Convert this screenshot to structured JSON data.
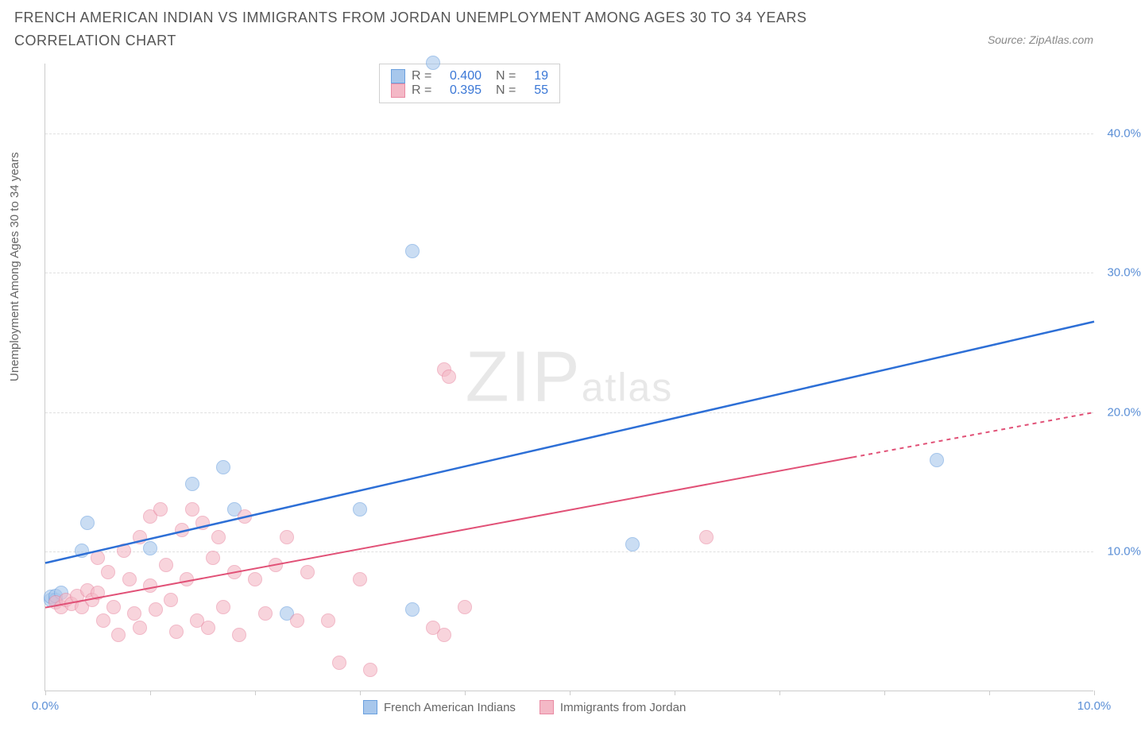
{
  "title": "FRENCH AMERICAN INDIAN VS IMMIGRANTS FROM JORDAN UNEMPLOYMENT AMONG AGES 30 TO 34 YEARS CORRELATION CHART",
  "source": "Source: ZipAtlas.com",
  "ylabel": "Unemployment Among Ages 30 to 34 years",
  "watermark_bold": "ZIP",
  "watermark_light": "atlas",
  "chart": {
    "type": "scatter",
    "xlim": [
      0,
      10
    ],
    "ylim": [
      0,
      45
    ],
    "xtick_values": [
      0,
      1,
      2,
      3,
      4,
      5,
      6,
      7,
      8,
      9,
      10
    ],
    "xtick_labels": {
      "0": "0.0%",
      "10": "10.0%"
    },
    "ytick_values": [
      10,
      20,
      30,
      40
    ],
    "ytick_labels": {
      "10": "10.0%",
      "20": "20.0%",
      "30": "30.0%",
      "40": "40.0%"
    },
    "grid_color": "#e0e0e0",
    "background_color": "#ffffff",
    "axis_color": "#cccccc",
    "tick_label_color": "#5b8fd6",
    "label_color": "#666666",
    "series": [
      {
        "name": "French American Indians",
        "color_fill": "#a7c7ec",
        "color_stroke": "#6aa0de",
        "opacity": 0.6,
        "marker_radius": 9,
        "R": "0.400",
        "N": "19",
        "trend_color": "#2d6fd6",
        "trend_width": 2.5,
        "trend": {
          "x1": 0,
          "y1": 9.2,
          "x2": 10,
          "y2": 26.5,
          "dash_from_x": null
        },
        "points": [
          [
            0.05,
            6.5
          ],
          [
            0.05,
            6.7
          ],
          [
            0.1,
            6.5
          ],
          [
            0.1,
            6.8
          ],
          [
            0.15,
            7.0
          ],
          [
            0.35,
            10.0
          ],
          [
            0.4,
            12.0
          ],
          [
            1.0,
            10.2
          ],
          [
            1.7,
            16.0
          ],
          [
            1.4,
            14.8
          ],
          [
            1.8,
            13.0
          ],
          [
            2.3,
            5.5
          ],
          [
            3.0,
            13.0
          ],
          [
            3.5,
            31.5
          ],
          [
            3.5,
            5.8
          ],
          [
            5.6,
            10.5
          ],
          [
            8.5,
            16.5
          ],
          [
            3.7,
            45.0
          ]
        ]
      },
      {
        "name": "Immigrants from Jordan",
        "color_fill": "#f4b8c6",
        "color_stroke": "#e98aa3",
        "opacity": 0.6,
        "marker_radius": 9,
        "R": "0.395",
        "N": "55",
        "trend_color": "#e15177",
        "trend_width": 2,
        "trend": {
          "x1": 0,
          "y1": 6.0,
          "x2": 10,
          "y2": 20.0,
          "dash_from_x": 7.7
        },
        "points": [
          [
            0.1,
            6.3
          ],
          [
            0.15,
            6.0
          ],
          [
            0.2,
            6.5
          ],
          [
            0.25,
            6.2
          ],
          [
            0.3,
            6.8
          ],
          [
            0.35,
            6.0
          ],
          [
            0.4,
            7.2
          ],
          [
            0.45,
            6.5
          ],
          [
            0.5,
            9.5
          ],
          [
            0.5,
            7.0
          ],
          [
            0.55,
            5.0
          ],
          [
            0.6,
            8.5
          ],
          [
            0.65,
            6.0
          ],
          [
            0.7,
            4.0
          ],
          [
            0.75,
            10.0
          ],
          [
            0.8,
            8.0
          ],
          [
            0.85,
            5.5
          ],
          [
            0.9,
            11.0
          ],
          [
            0.9,
            4.5
          ],
          [
            1.0,
            12.5
          ],
          [
            1.0,
            7.5
          ],
          [
            1.05,
            5.8
          ],
          [
            1.1,
            13.0
          ],
          [
            1.15,
            9.0
          ],
          [
            1.2,
            6.5
          ],
          [
            1.25,
            4.2
          ],
          [
            1.3,
            11.5
          ],
          [
            1.35,
            8.0
          ],
          [
            1.4,
            13.0
          ],
          [
            1.45,
            5.0
          ],
          [
            1.5,
            12.0
          ],
          [
            1.55,
            4.5
          ],
          [
            1.6,
            9.5
          ],
          [
            1.65,
            11.0
          ],
          [
            1.7,
            6.0
          ],
          [
            1.8,
            8.5
          ],
          [
            1.85,
            4.0
          ],
          [
            1.9,
            12.5
          ],
          [
            2.0,
            8.0
          ],
          [
            2.1,
            5.5
          ],
          [
            2.2,
            9.0
          ],
          [
            2.3,
            11.0
          ],
          [
            2.4,
            5.0
          ],
          [
            2.5,
            8.5
          ],
          [
            2.7,
            5.0
          ],
          [
            2.8,
            2.0
          ],
          [
            3.0,
            8.0
          ],
          [
            3.1,
            1.5
          ],
          [
            3.7,
            4.5
          ],
          [
            3.8,
            23.0
          ],
          [
            3.85,
            22.5
          ],
          [
            3.8,
            4.0
          ],
          [
            4.0,
            6.0
          ],
          [
            6.3,
            11.0
          ]
        ]
      }
    ]
  },
  "legend_bottom": [
    {
      "label": "French American Indians",
      "fill": "#a7c7ec",
      "stroke": "#6aa0de"
    },
    {
      "label": "Immigrants from Jordan",
      "fill": "#f4b8c6",
      "stroke": "#e98aa3"
    }
  ]
}
